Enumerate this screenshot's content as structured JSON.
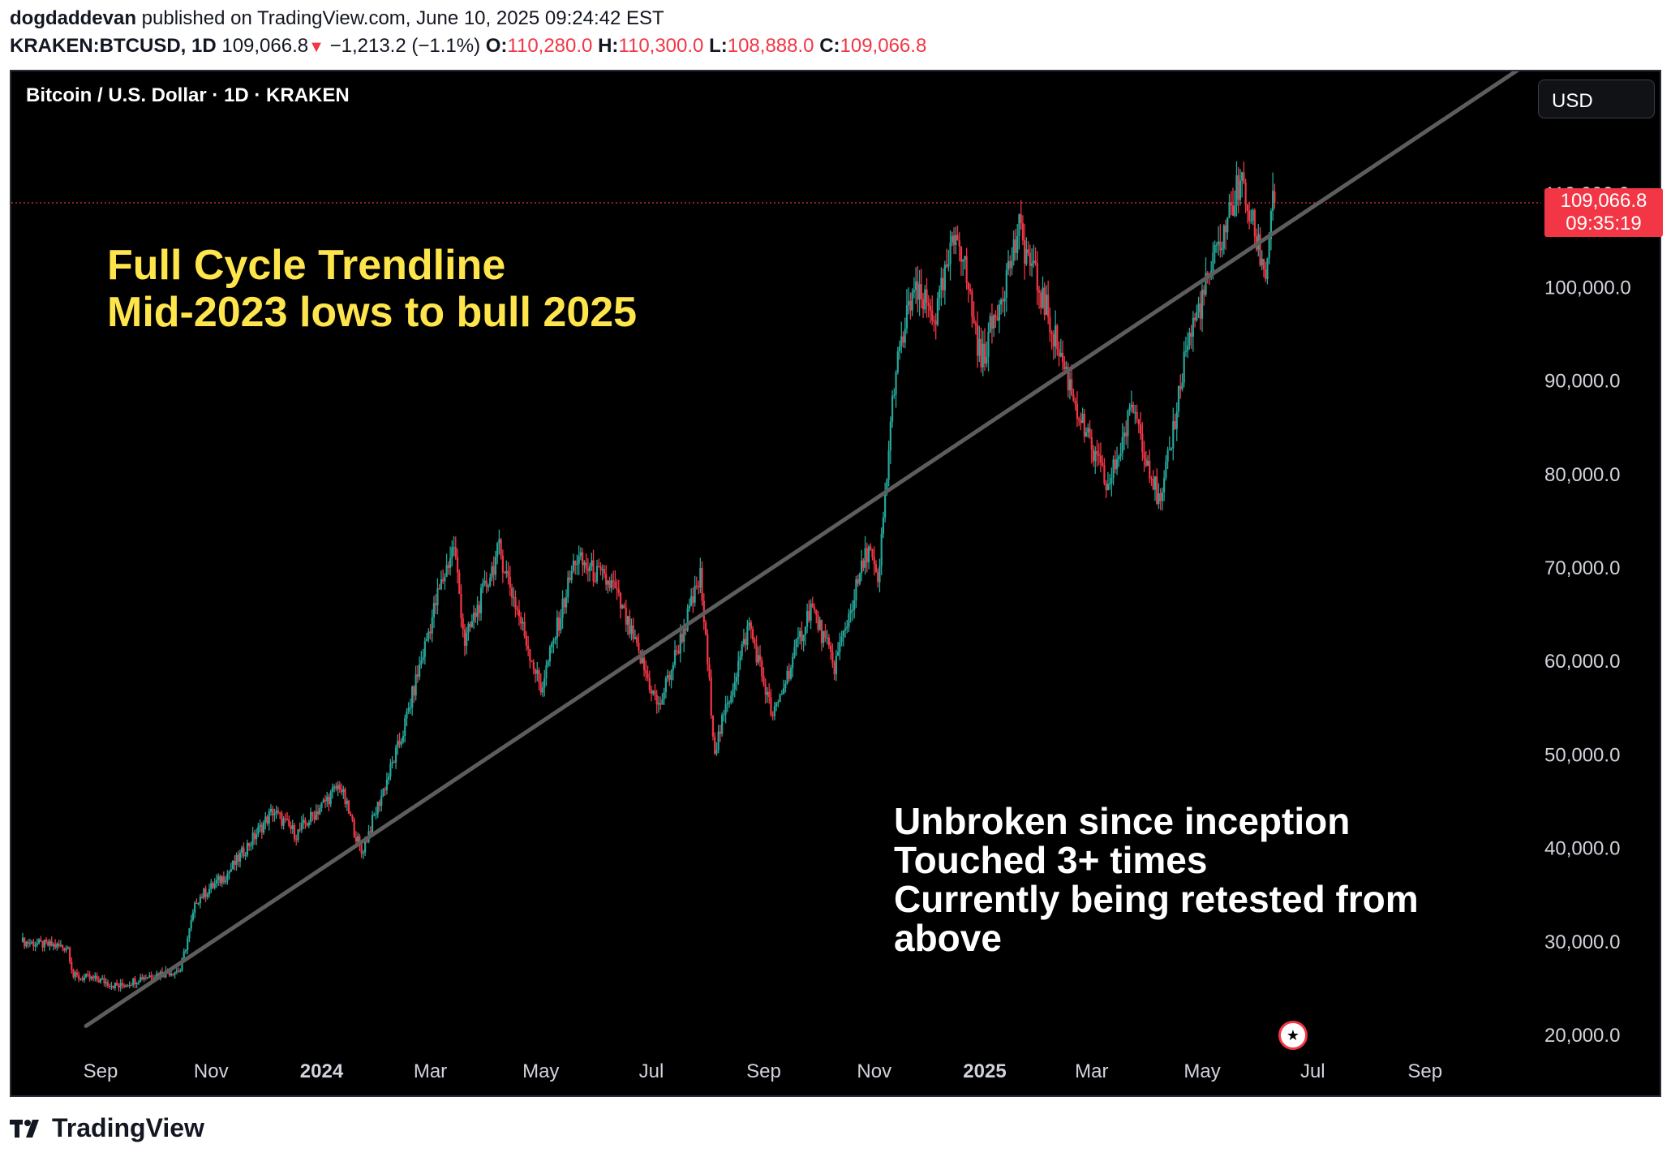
{
  "header": {
    "publisher": "dogdaddevan",
    "published_text": " published on TradingView.com, June 10, 2025 09:24:42 EST",
    "symbol": "KRAKEN:BTCUSD, 1D",
    "last": "109,066.8",
    "down_arrow": "▼",
    "change": "−1,213.2 (−1.1%)",
    "o_label": "O:",
    "o_value": "110,280.0",
    "h_label": "H:",
    "h_value": "110,300.0",
    "l_label": "L:",
    "l_value": "108,888.0",
    "c_label": "C:",
    "c_value": "109,066.8"
  },
  "chart_header": {
    "series_title": "Bitcoin / U.S. Dollar · 1D · KRAKEN",
    "currency_button": "USD"
  },
  "price_tag": {
    "price": "109,066.8",
    "countdown": "09:35:19"
  },
  "annotations": {
    "title_line1": "Full Cycle Trendline",
    "title_line2": "Mid-2023 lows to bull 2025",
    "note_line1": "Unbroken since inception",
    "note_line2": "Touched 3+ times",
    "note_line3": "Currently being retested from",
    "note_line4": "above"
  },
  "footer": {
    "brand": "TradingView",
    "logo_icon": "tradingview-logo-icon"
  },
  "colors": {
    "up": "#26a69a",
    "down": "#f23645",
    "trendline": "#5d5d5d",
    "annotation_yellow": "#ffe54c",
    "background": "#000000"
  },
  "chart_data": {
    "type": "candlestick",
    "symbol": "KRAKEN:BTCUSD",
    "interval": "1D",
    "ylim": [
      18000,
      118000
    ],
    "y_ticks": [
      "20,000.0",
      "30,000.0",
      "40,000.0",
      "50,000.0",
      "60,000.0",
      "70,000.0",
      "80,000.0",
      "90,000.0",
      "100,000.0",
      "110,000.0"
    ],
    "x_ticks": [
      {
        "label": "Sep",
        "date": "2023-09-01",
        "bold": false
      },
      {
        "label": "Nov",
        "date": "2023-11-01",
        "bold": false
      },
      {
        "label": "2024",
        "date": "2024-01-01",
        "bold": true
      },
      {
        "label": "Mar",
        "date": "2024-03-01",
        "bold": false
      },
      {
        "label": "May",
        "date": "2024-05-01",
        "bold": false
      },
      {
        "label": "Jul",
        "date": "2024-07-01",
        "bold": false
      },
      {
        "label": "Sep",
        "date": "2024-09-01",
        "bold": false
      },
      {
        "label": "Nov",
        "date": "2024-11-01",
        "bold": false
      },
      {
        "label": "2025",
        "date": "2025-01-01",
        "bold": true
      },
      {
        "label": "Mar",
        "date": "2025-03-01",
        "bold": false
      },
      {
        "label": "May",
        "date": "2025-05-01",
        "bold": false
      },
      {
        "label": "Jul",
        "date": "2025-07-01",
        "bold": false
      },
      {
        "label": "Sep",
        "date": "2025-09-01",
        "bold": false
      }
    ],
    "price_path": [
      [
        "2023-07-20",
        30000
      ],
      [
        "2023-08-14",
        29400
      ],
      [
        "2023-08-17",
        26300
      ],
      [
        "2023-09-01",
        25900
      ],
      [
        "2023-09-11",
        25200
      ],
      [
        "2023-09-25",
        26300
      ],
      [
        "2023-10-15",
        27000
      ],
      [
        "2023-10-24",
        34500
      ],
      [
        "2023-11-10",
        37300
      ],
      [
        "2023-12-05",
        44000
      ],
      [
        "2023-12-18",
        41500
      ],
      [
        "2024-01-11",
        46800
      ],
      [
        "2024-01-23",
        39500
      ],
      [
        "2024-02-14",
        51800
      ],
      [
        "2024-03-05",
        67000
      ],
      [
        "2024-03-14",
        72500
      ],
      [
        "2024-03-20",
        62000
      ],
      [
        "2024-04-08",
        72000
      ],
      [
        "2024-05-01",
        57000
      ],
      [
        "2024-05-20",
        71000
      ],
      [
        "2024-06-10",
        68000
      ],
      [
        "2024-07-05",
        55000
      ],
      [
        "2024-07-28",
        69000
      ],
      [
        "2024-08-05",
        50500
      ],
      [
        "2024-08-24",
        64000
      ],
      [
        "2024-09-06",
        53900
      ],
      [
        "2024-09-27",
        66000
      ],
      [
        "2024-10-10",
        59500
      ],
      [
        "2024-10-29",
        72500
      ],
      [
        "2024-11-03",
        67800
      ],
      [
        "2024-11-12",
        90000
      ],
      [
        "2024-11-22",
        99500
      ],
      [
        "2024-12-05",
        97000
      ],
      [
        "2024-12-17",
        106500
      ],
      [
        "2024-12-30",
        92000
      ],
      [
        "2025-01-20",
        106000
      ],
      [
        "2025-02-05",
        97000
      ],
      [
        "2025-02-26",
        84000
      ],
      [
        "2025-03-10",
        78500
      ],
      [
        "2025-03-24",
        87500
      ],
      [
        "2025-04-08",
        76300
      ],
      [
        "2025-04-22",
        93500
      ],
      [
        "2025-05-08",
        103000
      ],
      [
        "2025-05-22",
        111500
      ],
      [
        "2025-06-05",
        101500
      ],
      [
        "2025-06-09",
        110200
      ],
      [
        "2025-06-10",
        109066.8
      ]
    ],
    "trendline": {
      "start": [
        "2023-08-24",
        21000
      ],
      "end": [
        "2025-11-20",
        127000
      ]
    },
    "last_price": 109066.8,
    "last_price_label": "109,066.8",
    "countdown": "09:35:19"
  }
}
